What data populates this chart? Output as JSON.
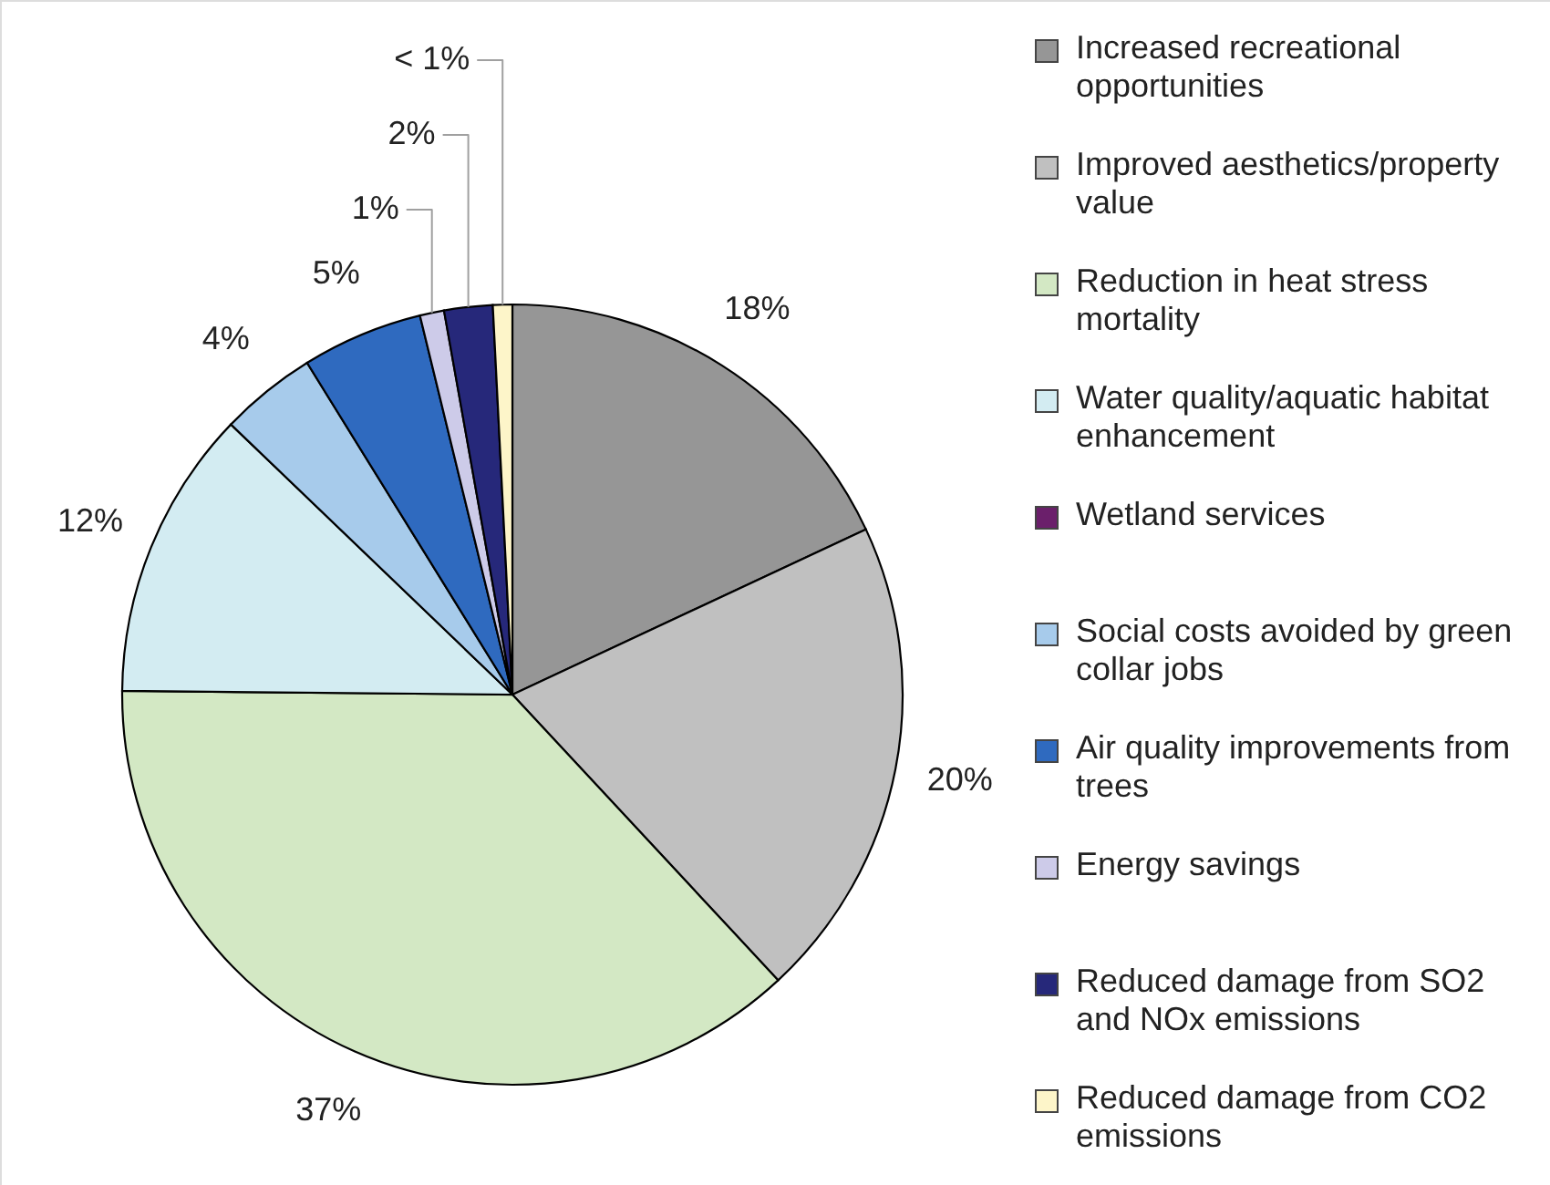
{
  "chart_data": {
    "type": "pie",
    "categories": [
      "Increased recreational opportunities",
      "Improved aesthetics/property value",
      "Reduction in heat stress mortality",
      "Water quality/aquatic habitat enhancement",
      "Wetland services",
      "Social costs avoided by green collar jobs",
      "Air quality improvements from trees",
      "Energy savings",
      "Reduced damage from SO2 and NOx emissions",
      "Reduced damage from CO2 emissions"
    ],
    "values": [
      18,
      20,
      37,
      12,
      null,
      4,
      5,
      1,
      2,
      0.8
    ],
    "colors": [
      "#969696",
      "#c0c0c0",
      "#d3e8c4",
      "#d3ecf2",
      "#6b1f6b",
      "#a7cbeb",
      "#2f6abf",
      "#cdcbe9",
      "#26287a",
      "#fdf5c9"
    ],
    "value_labels": [
      "18%",
      "20%",
      "37%",
      "12%",
      null,
      "4%",
      "5%",
      "1%",
      "2%",
      "< 1%"
    ],
    "legend": "right"
  }
}
